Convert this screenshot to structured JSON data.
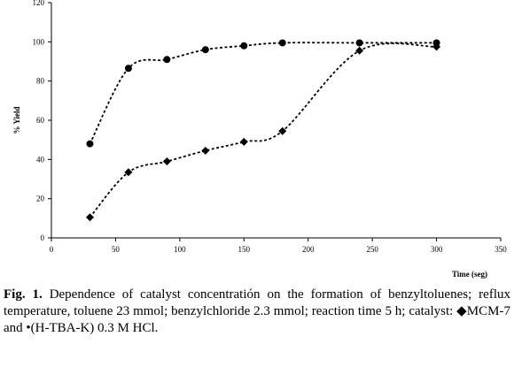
{
  "chart_data": {
    "type": "line",
    "xlabel": "Time (seg)",
    "ylabel": "% Yield",
    "xlim": [
      0,
      350
    ],
    "ylim": [
      0,
      120
    ],
    "xticks": [
      0,
      50,
      100,
      150,
      200,
      250,
      300,
      350
    ],
    "yticks": [
      0,
      20,
      40,
      60,
      80,
      100,
      120
    ],
    "grid": false,
    "series": [
      {
        "marker": "circle",
        "color": "#000000",
        "x": [
          30,
          60,
          90,
          120,
          150,
          180,
          240,
          300
        ],
        "y": [
          48,
          86.5,
          91,
          96,
          98,
          99.5,
          99.5,
          99.5
        ]
      },
      {
        "marker": "diamond",
        "color": "#000000",
        "x": [
          30,
          60,
          90,
          120,
          150,
          180,
          240,
          300
        ],
        "y": [
          10.5,
          33.5,
          39,
          44.5,
          49,
          54.5,
          95.5,
          97.5
        ]
      }
    ]
  },
  "caption": {
    "label": "Fig. 1.",
    "text": " Dependence of catalyst concentratión on the formation of benzyltoluenes; reflux temperature, toluene 23 mmol; benzylchloride 2.3 mmol; reaction time 5 h; catalyst: ◆MCM-7 and •(H-TBA-K) 0.3 M HCl."
  }
}
